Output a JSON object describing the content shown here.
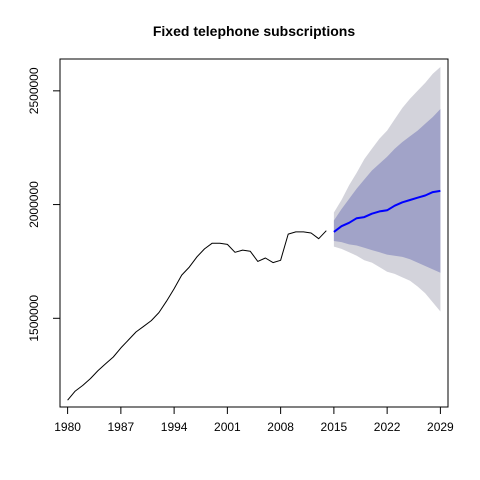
{
  "chart_data": {
    "type": "line",
    "title": "Fixed telephone subscriptions",
    "xlabel": "",
    "ylabel": "",
    "xlim": [
      1979,
      2030
    ],
    "ylim": [
      1110000,
      2640000
    ],
    "x_ticks": [
      1980,
      1987,
      1994,
      2001,
      2008,
      2015,
      2022,
      2029
    ],
    "y_ticks": [
      1500000,
      2000000,
      2500000
    ],
    "x_tick_labels": [
      "1980",
      "1987",
      "1994",
      "2001",
      "2008",
      "2015",
      "2022",
      "2029"
    ],
    "y_tick_labels": [
      "1500000",
      "2000000",
      "2500000"
    ],
    "grid": false,
    "legend": "none",
    "series": [
      {
        "role": "observed",
        "color": "#000000",
        "x": [
          1980,
          1981,
          1982,
          1983,
          1984,
          1985,
          1986,
          1987,
          1988,
          1989,
          1990,
          1991,
          1992,
          1993,
          1994,
          1995,
          1996,
          1997,
          1998,
          1999,
          2000,
          2001,
          2002,
          2003,
          2004,
          2005,
          2006,
          2007,
          2008,
          2009,
          2010,
          2011,
          2012,
          2013,
          2014
        ],
        "y": [
          1140000,
          1180000,
          1205000,
          1235000,
          1270000,
          1300000,
          1330000,
          1370000,
          1405000,
          1440000,
          1465000,
          1490000,
          1525000,
          1575000,
          1630000,
          1690000,
          1725000,
          1770000,
          1805000,
          1830000,
          1830000,
          1825000,
          1790000,
          1800000,
          1795000,
          1750000,
          1765000,
          1745000,
          1755000,
          1870000,
          1880000,
          1880000,
          1875000,
          1850000,
          1885000
        ]
      },
      {
        "role": "forecast",
        "color": "#0000FF",
        "x": [
          2015,
          2016,
          2017,
          2018,
          2019,
          2020,
          2021,
          2022,
          2023,
          2024,
          2025,
          2026,
          2027,
          2028,
          2029
        ],
        "y": [
          1880000,
          1905000,
          1920000,
          1940000,
          1945000,
          1960000,
          1970000,
          1975000,
          1995000,
          2010000,
          2020000,
          2030000,
          2040000,
          2055000,
          2060000
        ]
      }
    ],
    "bands": [
      {
        "level": "95%",
        "color": "#D3D3DB",
        "x": [
          2015,
          2016,
          2017,
          2018,
          2019,
          2020,
          2021,
          2022,
          2023,
          2024,
          2025,
          2026,
          2027,
          2028,
          2029
        ],
        "lower": [
          1815000,
          1805000,
          1790000,
          1775000,
          1755000,
          1745000,
          1725000,
          1705000,
          1695000,
          1680000,
          1665000,
          1640000,
          1610000,
          1570000,
          1530000
        ],
        "upper": [
          1965000,
          2020000,
          2085000,
          2140000,
          2200000,
          2245000,
          2290000,
          2325000,
          2375000,
          2425000,
          2465000,
          2500000,
          2535000,
          2575000,
          2605000
        ]
      },
      {
        "level": "80%",
        "color": "#A1A3C8",
        "x": [
          2015,
          2016,
          2017,
          2018,
          2019,
          2020,
          2021,
          2022,
          2023,
          2024,
          2025,
          2026,
          2027,
          2028,
          2029
        ],
        "lower": [
          1840000,
          1835000,
          1825000,
          1820000,
          1810000,
          1800000,
          1790000,
          1780000,
          1775000,
          1770000,
          1760000,
          1745000,
          1730000,
          1715000,
          1700000
        ],
        "upper": [
          1930000,
          1980000,
          2025000,
          2070000,
          2110000,
          2150000,
          2180000,
          2210000,
          2245000,
          2275000,
          2300000,
          2325000,
          2355000,
          2385000,
          2420000
        ]
      }
    ]
  }
}
